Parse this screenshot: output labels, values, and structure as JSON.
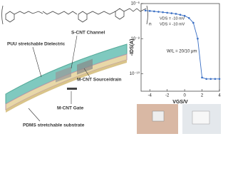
{
  "structure": {
    "repeat": "n"
  },
  "schematic": {
    "dielectric": "PUU stretchable Dielectric",
    "channel": "S-CNT Channel",
    "source_drain": "M-CNT Source/drain",
    "gate": "M-CNT Gate",
    "substrate": "PDMS stretchable substrate"
  },
  "chart_data": {
    "type": "line",
    "x_label": "VGS/V",
    "y_label": "-IDS(A)",
    "log_y": true,
    "annotations": [
      "VDS = -10 mV",
      "VDS = -10 mV",
      "W/L = 20/10 μm"
    ],
    "x": [
      -4.5,
      -4,
      -3.5,
      -3,
      -2.5,
      -2,
      -1.5,
      -1,
      -0.5,
      0,
      0.5,
      1,
      1.5,
      2,
      2.5,
      3,
      3.5,
      4
    ],
    "series": [
      {
        "color": "#3a6fc4",
        "values": [
          4e-07,
          3.8e-07,
          3.6e-07,
          3.4e-07,
          3.2e-07,
          3e-07,
          2.8e-07,
          2.6e-07,
          2.3e-07,
          2e-07,
          1.5e-07,
          8e-08,
          1e-08,
          6e-11,
          5e-11,
          5e-11,
          5e-11,
          5e-11
        ]
      }
    ],
    "xlim": [
      -5,
      4
    ],
    "xticks": [
      -4,
      -2,
      0,
      2,
      4
    ],
    "ylim": [
      1e-11,
      1e-06
    ],
    "yticks": [
      {
        "value": 1e-06,
        "label": "10⁻⁶"
      },
      {
        "value": 1e-08,
        "label": "10⁻⁸"
      },
      {
        "value": 1e-10,
        "label": "10⁻¹⁰"
      }
    ]
  }
}
